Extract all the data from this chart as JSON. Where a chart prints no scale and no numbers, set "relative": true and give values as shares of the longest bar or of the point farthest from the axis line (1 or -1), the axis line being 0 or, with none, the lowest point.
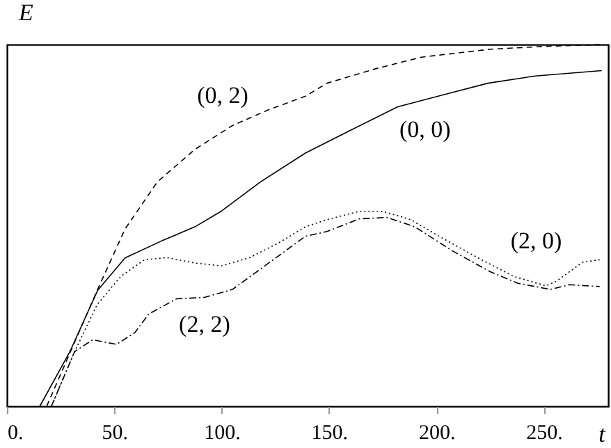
{
  "chart_data": {
    "type": "line",
    "xlabel": "t",
    "ylabel": "E",
    "relative": true,
    "xlim": [
      0,
      280
    ],
    "xticks": [
      {
        "value": 0,
        "label": "0."
      },
      {
        "value": 50,
        "label": "50."
      },
      {
        "value": 100,
        "label": "100."
      },
      {
        "value": 150,
        "label": "150."
      },
      {
        "value": 200,
        "label": "200."
      },
      {
        "value": 250,
        "label": "250."
      }
    ],
    "marker": "none",
    "series": [
      {
        "name": "(0, 2)",
        "color": "#000000",
        "line_style": "dashed",
        "x": [
          18.5,
          31.5,
          42,
          55,
          70,
          87.5,
          105,
          122,
          139,
          149,
          171,
          193,
          225,
          251,
          276
        ],
        "values": [
          0,
          0.177,
          0.32,
          0.49,
          0.62,
          0.71,
          0.776,
          0.82,
          0.857,
          0.893,
          0.932,
          0.965,
          0.987,
          0.995,
          1.0
        ]
      },
      {
        "name": "(0, 0)",
        "color": "#000000",
        "line_style": "solid",
        "x": [
          15.3,
          29.3,
          42.2,
          55,
          72,
          87.5,
          100,
          118,
          139,
          160,
          182,
          207,
          224,
          246,
          277
        ],
        "values": [
          0,
          0.151,
          0.32,
          0.41,
          0.457,
          0.496,
          0.54,
          0.62,
          0.7,
          0.763,
          0.828,
          0.867,
          0.893,
          0.913,
          0.928
        ]
      },
      {
        "name": "(2, 0)",
        "color": "#000000",
        "line_style": "dotted",
        "x": [
          20.7,
          31.5,
          42,
          53,
          64,
          74.6,
          87.5,
          100,
          113,
          126,
          139,
          149,
          164,
          175,
          188,
          203,
          221,
          236,
          251,
          256,
          268,
          276
        ],
        "values": [
          0,
          0.151,
          0.281,
          0.359,
          0.405,
          0.411,
          0.396,
          0.388,
          0.411,
          0.45,
          0.496,
          0.516,
          0.539,
          0.539,
          0.516,
          0.464,
          0.405,
          0.359,
          0.333,
          0.346,
          0.398,
          0.405
        ]
      },
      {
        "name": "(2, 2)",
        "color": "#000000",
        "line_style": "dashdot",
        "x": [
          20.7,
          31.5,
          40,
          51,
          59.5,
          66,
          79,
          92,
          105,
          118,
          139,
          149,
          164,
          177,
          190,
          207,
          225,
          238,
          253,
          262,
          276
        ],
        "values": [
          0,
          0.151,
          0.184,
          0.171,
          0.203,
          0.255,
          0.297,
          0.301,
          0.323,
          0.379,
          0.47,
          0.483,
          0.518,
          0.522,
          0.496,
          0.431,
          0.372,
          0.34,
          0.323,
          0.336,
          0.331
        ]
      }
    ]
  }
}
